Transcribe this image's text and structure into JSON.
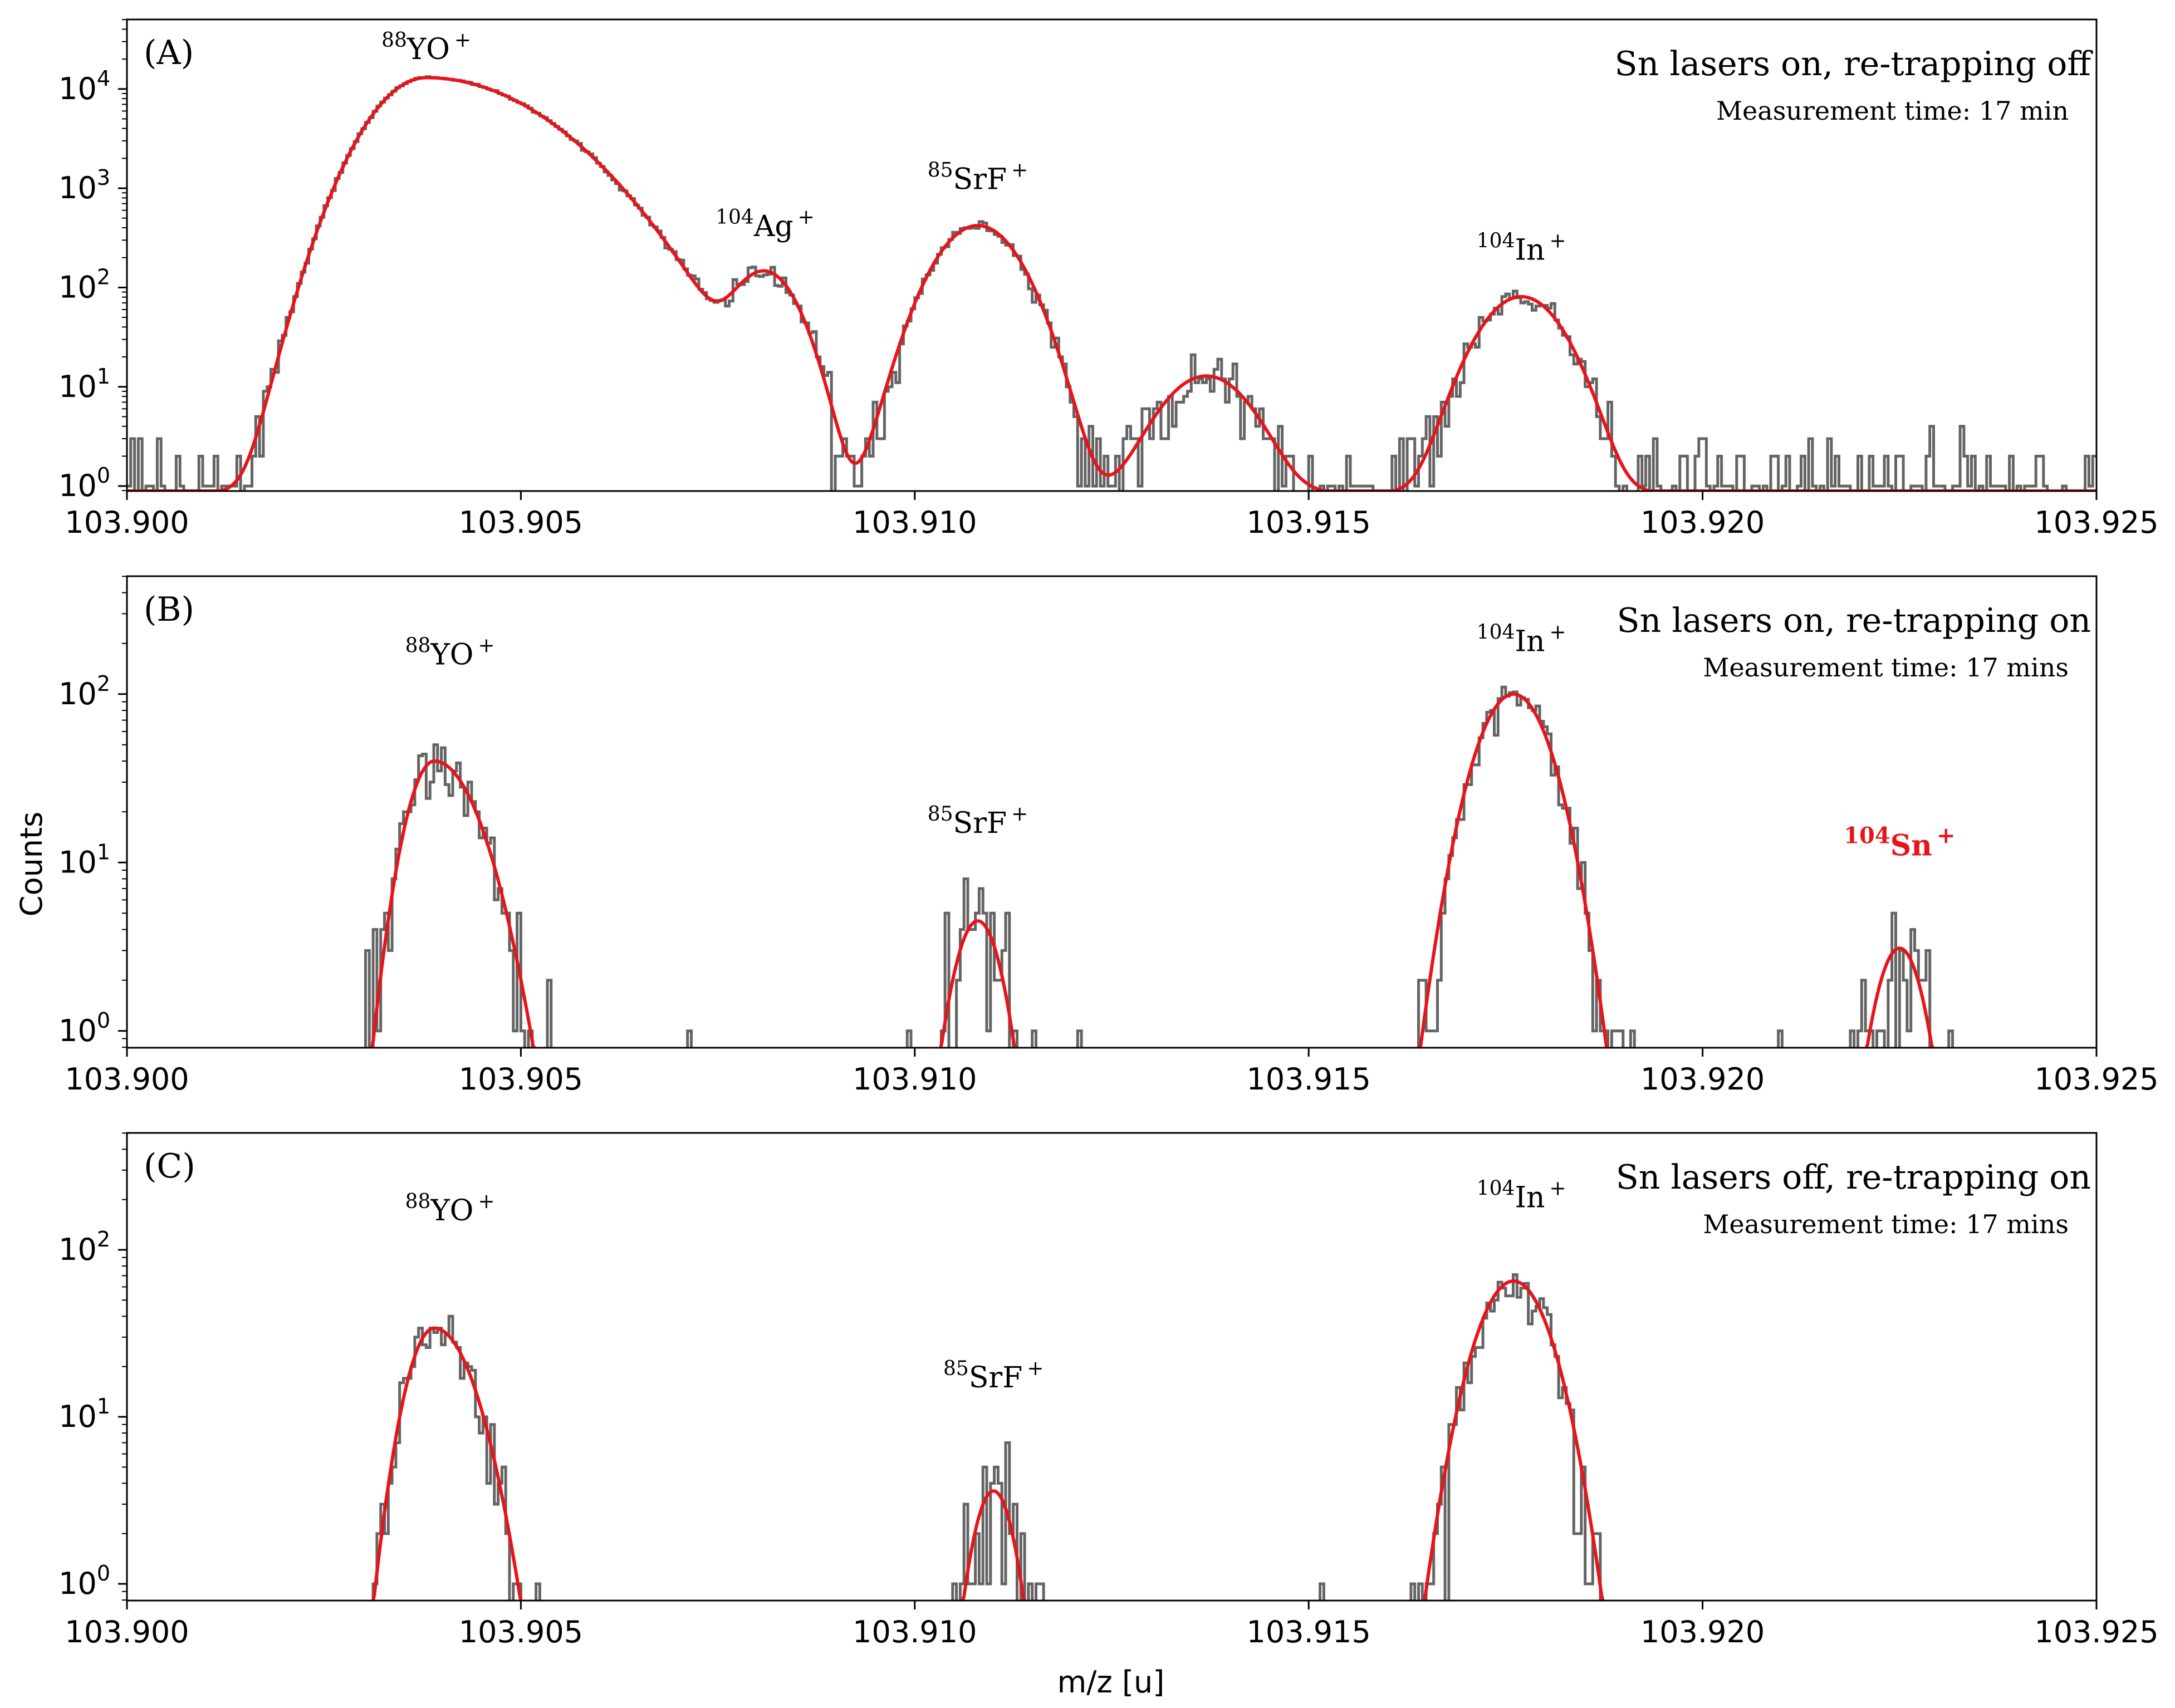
{
  "chart_data": {
    "shared": {
      "type": "line",
      "xlabel": "m/z [u]",
      "ylabel": "Counts",
      "xlim": [
        103.9,
        103.925
      ],
      "xticks": [
        "103.900",
        "103.905",
        "103.910",
        "103.915",
        "103.920",
        "103.925"
      ],
      "yscale": "log",
      "colors": {
        "data": "#3d3d3d",
        "fit": "#e8141a",
        "highlight": "#e8141a"
      }
    },
    "panels": [
      {
        "label": "(A)",
        "title": "Sn lasers on, re-trapping off",
        "subtitle": "Measurement time: 17 min",
        "ylim_log10": [
          -0.05,
          4.7
        ],
        "yticks": [
          {
            "base": "10",
            "exp": "0"
          },
          {
            "base": "10",
            "exp": "1"
          },
          {
            "base": "10",
            "exp": "2"
          },
          {
            "base": "10",
            "exp": "3"
          },
          {
            "base": "10",
            "exp": "4"
          }
        ],
        "ytick_values": [
          0,
          1,
          2,
          3,
          4
        ],
        "annotations": [
          {
            "mass": "88",
            "species": "YO",
            "charge": "+",
            "x": 103.9038,
            "y": 20000
          },
          {
            "mass": "104",
            "species": "Ag",
            "charge": "+",
            "x": 103.9081,
            "y": 330
          },
          {
            "mass": "85",
            "species": "SrF",
            "charge": "+",
            "x": 103.9108,
            "y": 980
          },
          {
            "mass": "104",
            "species": "In",
            "charge": "+",
            "x": 103.9177,
            "y": 190
          }
        ],
        "peaks": [
          {
            "center": 103.9038,
            "amp": 13000,
            "sigma": 0.00052,
            "tail_right": 0.0011
          },
          {
            "center": 103.9081,
            "amp": 140,
            "sigma": 0.00033
          },
          {
            "center": 103.9108,
            "amp": 420,
            "sigma": 0.00042
          },
          {
            "center": 103.9137,
            "amp": 12,
            "sigma": 0.00045
          },
          {
            "center": 103.9177,
            "amp": 80,
            "sigma": 0.00042
          }
        ],
        "background": 0.85
      },
      {
        "label": "(B)",
        "title": "Sn lasers on, re-trapping on",
        "subtitle": "Measurement time: 17 mins",
        "ylim_log10": [
          -0.1,
          2.7
        ],
        "yticks": [
          {
            "base": "10",
            "exp": "0"
          },
          {
            "base": "10",
            "exp": "1"
          },
          {
            "base": "10",
            "exp": "2"
          }
        ],
        "ytick_values": [
          0,
          1,
          2
        ],
        "annotations": [
          {
            "mass": "88",
            "species": "YO",
            "charge": "+",
            "x": 103.9041,
            "y": 150
          },
          {
            "mass": "85",
            "species": "SrF",
            "charge": "+",
            "x": 103.9108,
            "y": 15
          },
          {
            "mass": "104",
            "species": "In",
            "charge": "+",
            "x": 103.9177,
            "y": 180
          },
          {
            "mass": "104",
            "species": "Sn",
            "charge": "+",
            "x": 103.9225,
            "y": 11,
            "highlight": true
          }
        ],
        "peaks": [
          {
            "center": 103.9039,
            "amp": 40,
            "sigma": 0.00028,
            "tail_right": 0.00045
          },
          {
            "center": 103.9108,
            "amp": 4.5,
            "sigma": 0.00025
          },
          {
            "center": 103.9176,
            "amp": 100,
            "sigma": 0.00038
          },
          {
            "center": 103.9225,
            "amp": 3.1,
            "sigma": 0.00025
          }
        ],
        "background": 0
      },
      {
        "label": "(C)",
        "title": "Sn lasers off, re-trapping on",
        "subtitle": "Measurement time: 17 mins",
        "ylim_log10": [
          -0.1,
          2.7
        ],
        "yticks": [
          {
            "base": "10",
            "exp": "0"
          },
          {
            "base": "10",
            "exp": "1"
          },
          {
            "base": "10",
            "exp": "2"
          }
        ],
        "ytick_values": [
          0,
          1,
          2
        ],
        "annotations": [
          {
            "mass": "88",
            "species": "YO",
            "charge": "+",
            "x": 103.9041,
            "y": 150
          },
          {
            "mass": "85",
            "species": "SrF",
            "charge": "+",
            "x": 103.911,
            "y": 15
          },
          {
            "mass": "104",
            "species": "In",
            "charge": "+",
            "x": 103.9177,
            "y": 180
          }
        ],
        "peaks": [
          {
            "center": 103.9039,
            "amp": 34,
            "sigma": 0.00028,
            "tail_right": 0.0004
          },
          {
            "center": 103.911,
            "amp": 3.6,
            "sigma": 0.00022
          },
          {
            "center": 103.9176,
            "amp": 65,
            "sigma": 0.00038
          }
        ],
        "background": 0
      }
    ]
  }
}
